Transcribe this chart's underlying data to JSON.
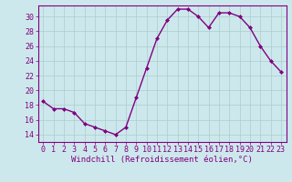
{
  "x": [
    0,
    1,
    2,
    3,
    4,
    5,
    6,
    7,
    8,
    9,
    10,
    11,
    12,
    13,
    14,
    15,
    16,
    17,
    18,
    19,
    20,
    21,
    22,
    23
  ],
  "y": [
    18.5,
    17.5,
    17.5,
    17.0,
    15.5,
    15.0,
    14.5,
    14.0,
    15.0,
    19.0,
    23.0,
    27.0,
    29.5,
    31.0,
    31.0,
    30.0,
    28.5,
    30.5,
    30.5,
    30.0,
    28.5,
    26.0,
    24.0,
    22.5
  ],
  "line_color": "#800080",
  "marker": "D",
  "marker_size": 2.0,
  "linewidth": 1.0,
  "bg_color": "#cde8ec",
  "grid_color": "#aacccc",
  "xlabel": "Windchill (Refroidissement éolien,°C)",
  "ylabel_ticks": [
    14,
    16,
    18,
    20,
    22,
    24,
    26,
    28,
    30
  ],
  "ylim": [
    13.0,
    31.5
  ],
  "xlim": [
    -0.5,
    23.5
  ],
  "xtick_labels": [
    "0",
    "1",
    "2",
    "3",
    "4",
    "5",
    "6",
    "7",
    "8",
    "9",
    "10",
    "11",
    "12",
    "13",
    "14",
    "15",
    "16",
    "17",
    "18",
    "19",
    "20",
    "21",
    "22",
    "23"
  ],
  "xlabel_fontsize": 6.5,
  "tick_fontsize": 6.0,
  "tick_color": "#800080",
  "border_color": "#800080"
}
